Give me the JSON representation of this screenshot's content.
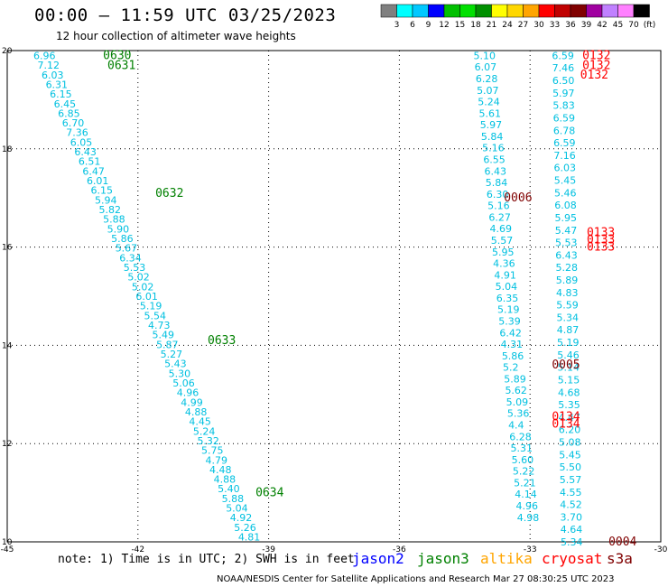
{
  "header": {
    "title": "00:00 – 11:59 UTC 03/25/2023",
    "subtitle": "12 hour collection of altimeter wave heights"
  },
  "color_scale": {
    "labels": [
      "3",
      "6",
      "9",
      "12",
      "15",
      "18",
      "21",
      "24",
      "27",
      "30",
      "33",
      "36",
      "39",
      "42",
      "45",
      "70",
      "(ft)"
    ],
    "colors": [
      "#808080",
      "#00ffff",
      "#00c8ff",
      "#0000ff",
      "#00c000",
      "#00e000",
      "#009000",
      "#ffff00",
      "#ffd700",
      "#ffa500",
      "#ff0000",
      "#c00000",
      "#800000",
      "#a000a0",
      "#c080ff",
      "#ff80ff",
      "#000000"
    ]
  },
  "footer": {
    "note": "note: 1) Time is in UTC; 2) SWH is in feet",
    "credit": "NOAA/NESDIS Center for Satellite Applications and Research   Mar 27 08:30:25 UTC 2023",
    "satellites": [
      {
        "name": "jason2",
        "color": "#0000ff"
      },
      {
        "name": "jason3",
        "color": "#008000"
      },
      {
        "name": "altika",
        "color": "#ffa500"
      },
      {
        "name": "cryosat",
        "color": "#ff0000"
      },
      {
        "name": "s3a",
        "color": "#800000"
      }
    ]
  },
  "chart_data": {
    "type": "scatter",
    "xlim": [
      -45,
      -30
    ],
    "ylim": [
      10,
      20
    ],
    "x_ticks": [
      "-45",
      "-42",
      "-39",
      "-36",
      "-33",
      "-30"
    ],
    "y_ticks": [
      "20",
      "18",
      "16",
      "14",
      "12",
      "10"
    ],
    "grid": true,
    "track_labels": [
      {
        "label": "0630",
        "lon": -42.8,
        "lat": 19.9,
        "color": "#008000"
      },
      {
        "label": "0631",
        "lon": -42.7,
        "lat": 19.7,
        "color": "#008000"
      },
      {
        "label": "0632",
        "lon": -41.6,
        "lat": 17.1,
        "color": "#008000"
      },
      {
        "label": "0633",
        "lon": -40.4,
        "lat": 14.1,
        "color": "#008000"
      },
      {
        "label": "0634",
        "lon": -39.3,
        "lat": 11.0,
        "color": "#008000"
      },
      {
        "label": "0132",
        "lon": -31.8,
        "lat": 19.9,
        "color": "#ff0000"
      },
      {
        "label": "0132",
        "lon": -31.8,
        "lat": 19.7,
        "color": "#ff0000"
      },
      {
        "label": "0132",
        "lon": -31.85,
        "lat": 19.5,
        "color": "#ff0000"
      },
      {
        "label": "0006",
        "lon": -33.6,
        "lat": 17.0,
        "color": "#800000"
      },
      {
        "label": "0133",
        "lon": -31.7,
        "lat": 16.3,
        "color": "#ff0000"
      },
      {
        "label": "0133",
        "lon": -31.7,
        "lat": 16.15,
        "color": "#ff0000"
      },
      {
        "label": "0133",
        "lon": -31.7,
        "lat": 16.0,
        "color": "#ff0000"
      },
      {
        "label": "0005",
        "lon": -32.5,
        "lat": 13.6,
        "color": "#800000"
      },
      {
        "label": "0134",
        "lon": -32.5,
        "lat": 12.55,
        "color": "#ff0000"
      },
      {
        "label": "0134",
        "lon": -32.5,
        "lat": 12.4,
        "color": "#ff0000"
      },
      {
        "label": "0004",
        "lon": -31.2,
        "lat": 10.0,
        "color": "#800000"
      }
    ],
    "left_track": {
      "values": [
        "6.96",
        "7.12",
        "6.03",
        "6.31",
        "6.15",
        "6.45",
        "6.85",
        "6.70",
        "7.36",
        "6.05",
        "6.43",
        "6.51",
        "6.47",
        "6.01",
        "6.15",
        "5.94",
        "5.82",
        "5.88",
        "5.90",
        "5.86",
        "5.67",
        "6.34",
        "5.53",
        "5.02",
        "5.02",
        "6.01",
        "5.19",
        "5.54",
        "4.73",
        "5.49",
        "5.87",
        "5.27",
        "5.43",
        "5.30",
        "5.06",
        "4.96",
        "4.99",
        "4.88",
        "4.45",
        "5.24",
        "5.32",
        "5.75",
        "4.79",
        "4.48",
        "4.88",
        "5.40",
        "5.88",
        "5.04",
        "4.92",
        "5.26",
        "4.81"
      ],
      "lat_start": 19.9,
      "lat_end": 10.1,
      "lon_start": -44.4,
      "lon_end": -39.7
    },
    "middle_track": {
      "values": [
        "5.10",
        "6.07",
        "6.28",
        "5.07",
        "5.24",
        "5.61",
        "5.97",
        "5.84",
        "5.16",
        "6.55",
        "6.43",
        "5.84",
        "6.30",
        "5.16",
        "6.27",
        "4.69",
        "5.57",
        "5.95",
        "4.36",
        "4.91",
        "5.04",
        "6.35",
        "5.19",
        "5.39",
        "6.42",
        "4.31",
        "5.86",
        "5.2",
        "5.89",
        "5.62",
        "5.09",
        "5.36",
        "4.4",
        "6.28",
        "5.31",
        "5.60",
        "5.22",
        "5.21",
        "4.14",
        "4.96",
        "4.98"
      ],
      "lat_start": 19.9,
      "lat_end": 10.5,
      "lon_start": -34.3,
      "lon_end": -33.3
    },
    "right_track": {
      "values": [
        "6.59",
        "7.46",
        "6.50",
        "5.97",
        "5.83",
        "6.59",
        "6.78",
        "6.59",
        "7.16",
        "6.03",
        "5.45",
        "5.46",
        "6.08",
        "5.95",
        "5.47",
        "5.53",
        "6.43",
        "5.28",
        "5.89",
        "4.83",
        "5.59",
        "5.34",
        "4.87",
        "5.19",
        "5.46",
        "5.14",
        "5.15",
        "4.68",
        "5.35",
        "4.47",
        "6.20",
        "5.08",
        "5.45",
        "5.50",
        "5.57",
        "4.55",
        "4.52",
        "3.70",
        "4.64",
        "5.34"
      ],
      "lat_start": 19.9,
      "lat_end": 10.0,
      "lon_start": -32.5,
      "lon_end": -32.3
    }
  }
}
